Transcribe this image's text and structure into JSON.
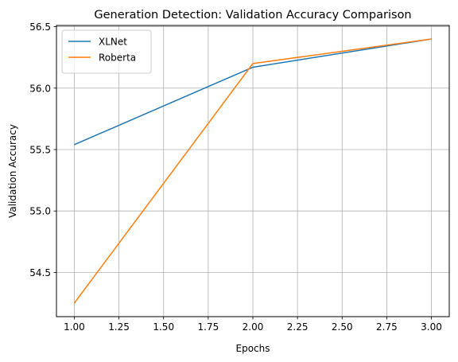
{
  "chart_data": {
    "type": "line",
    "title": "Generation Detection: Validation Accuracy Comparison",
    "xlabel": "Epochs",
    "ylabel": "Validation Accuracy",
    "x": [
      1,
      2,
      3
    ],
    "xlim": [
      0.9,
      3.1
    ],
    "ylim": [
      54.14,
      56.51
    ],
    "xticks": [
      1.0,
      1.25,
      1.5,
      1.75,
      2.0,
      2.25,
      2.5,
      2.75,
      3.0
    ],
    "xtick_labels": [
      "1.00",
      "1.25",
      "1.50",
      "1.75",
      "2.00",
      "2.25",
      "2.50",
      "2.75",
      "3.00"
    ],
    "yticks": [
      54.5,
      55.0,
      55.5,
      56.0,
      56.5
    ],
    "ytick_labels": [
      "54.5",
      "55.0",
      "55.5",
      "56.0",
      "56.5"
    ],
    "grid": true,
    "legend_position": "top-left",
    "series": [
      {
        "name": "XLNet",
        "color": "#1f77b4",
        "values": [
          55.54,
          56.17,
          56.4
        ]
      },
      {
        "name": "Roberta",
        "color": "#ff7f0e",
        "values": [
          54.25,
          56.2,
          56.4
        ]
      }
    ]
  }
}
